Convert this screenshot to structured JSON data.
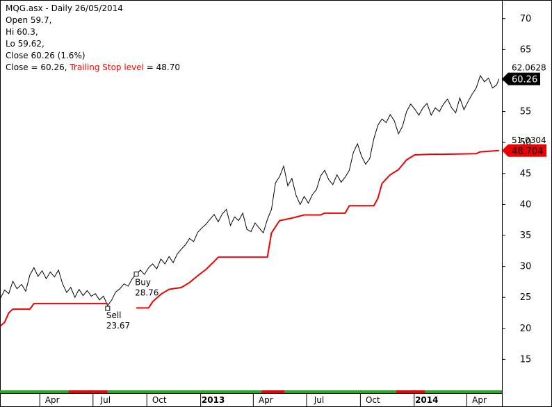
{
  "info": {
    "title": "MQG.asx - Daily 26/05/2014",
    "open": "Open 59.7,",
    "hi": "Hi 60.3,",
    "lo": "Lo 59.62,",
    "close": "Close 60.26 (1.6%)",
    "close_eq": "Close = 60.26,",
    "trailing_label": "Trailing Stop level",
    "trailing_val": "= 48.70"
  },
  "colors": {
    "price": "#000000",
    "stop": "#ee0000",
    "strip_green": "#22aa22",
    "strip_red": "#ee0000",
    "close_tag_bg": "#000000",
    "stop_tag_bg": "#ee0000"
  },
  "chart_data": {
    "type": "line",
    "title": "MQG.asx - Daily 26/05/2014",
    "ylim": [
      10,
      73
    ],
    "y_ticks": [
      15,
      20,
      25,
      30,
      35,
      40,
      45,
      50,
      55,
      60,
      65,
      70
    ],
    "x_range": [
      "2012-01-24",
      "2014-05-31"
    ],
    "x_ticks": [
      {
        "date": "2012-04-01",
        "label": "Apr",
        "bold": false
      },
      {
        "date": "2012-07-01",
        "label": "Jul",
        "bold": false
      },
      {
        "date": "2012-10-01",
        "label": "Oct",
        "bold": false
      },
      {
        "date": "2013-01-01",
        "label": "2013",
        "bold": true
      },
      {
        "date": "2013-04-01",
        "label": "Apr",
        "bold": false
      },
      {
        "date": "2013-07-01",
        "label": "Jul",
        "bold": false
      },
      {
        "date": "2013-10-01",
        "label": "Oct",
        "bold": false
      },
      {
        "date": "2014-01-01",
        "label": "2014",
        "bold": true
      },
      {
        "date": "2014-04-01",
        "label": "Apr",
        "bold": false
      }
    ],
    "series": [
      {
        "key": "close",
        "label": "Close",
        "points": [
          [
            "2012-01-25",
            24.9
          ],
          [
            "2012-02-01",
            26.2
          ],
          [
            "2012-02-08",
            25.6
          ],
          [
            "2012-02-15",
            27.6
          ],
          [
            "2012-02-22",
            26.4
          ],
          [
            "2012-03-01",
            27.1
          ],
          [
            "2012-03-08",
            26.0
          ],
          [
            "2012-03-15",
            28.6
          ],
          [
            "2012-03-22",
            29.8
          ],
          [
            "2012-03-29",
            28.4
          ],
          [
            "2012-04-05",
            29.3
          ],
          [
            "2012-04-12",
            28.0
          ],
          [
            "2012-04-19",
            29.1
          ],
          [
            "2012-04-26",
            28.3
          ],
          [
            "2012-05-03",
            29.4
          ],
          [
            "2012-05-10",
            27.2
          ],
          [
            "2012-05-17",
            25.8
          ],
          [
            "2012-05-24",
            26.6
          ],
          [
            "2012-05-31",
            25.0
          ],
          [
            "2012-06-07",
            26.3
          ],
          [
            "2012-06-14",
            25.3
          ],
          [
            "2012-06-21",
            26.1
          ],
          [
            "2012-06-28",
            25.2
          ],
          [
            "2012-07-05",
            25.6
          ],
          [
            "2012-07-12",
            24.6
          ],
          [
            "2012-07-19",
            25.2
          ],
          [
            "2012-07-26",
            23.67
          ],
          [
            "2012-08-02",
            24.6
          ],
          [
            "2012-08-09",
            25.9
          ],
          [
            "2012-08-16",
            26.4
          ],
          [
            "2012-08-23",
            27.2
          ],
          [
            "2012-08-30",
            26.8
          ],
          [
            "2012-09-06",
            28.0
          ],
          [
            "2012-09-13",
            28.76
          ],
          [
            "2012-09-20",
            29.4
          ],
          [
            "2012-09-27",
            28.7
          ],
          [
            "2012-10-04",
            29.8
          ],
          [
            "2012-10-11",
            30.4
          ],
          [
            "2012-10-18",
            29.6
          ],
          [
            "2012-10-25",
            31.2
          ],
          [
            "2012-11-01",
            30.4
          ],
          [
            "2012-11-08",
            31.6
          ],
          [
            "2012-11-15",
            30.6
          ],
          [
            "2012-11-22",
            32.0
          ],
          [
            "2012-11-29",
            32.8
          ],
          [
            "2012-12-06",
            33.5
          ],
          [
            "2012-12-13",
            34.5
          ],
          [
            "2012-12-20",
            34.0
          ],
          [
            "2012-12-27",
            35.5
          ],
          [
            "2013-01-03",
            36.2
          ],
          [
            "2013-01-10",
            36.8
          ],
          [
            "2013-01-17",
            37.6
          ],
          [
            "2013-01-24",
            38.4
          ],
          [
            "2013-01-31",
            37.2
          ],
          [
            "2013-02-07",
            38.5
          ],
          [
            "2013-02-14",
            39.2
          ],
          [
            "2013-02-21",
            36.6
          ],
          [
            "2013-02-28",
            38.0
          ],
          [
            "2013-03-07",
            37.4
          ],
          [
            "2013-03-14",
            38.6
          ],
          [
            "2013-03-21",
            36.0
          ],
          [
            "2013-03-28",
            35.6
          ],
          [
            "2013-04-04",
            37.0
          ],
          [
            "2013-04-11",
            36.2
          ],
          [
            "2013-04-18",
            35.4
          ],
          [
            "2013-04-25",
            37.6
          ],
          [
            "2013-05-02",
            39.2
          ],
          [
            "2013-05-09",
            43.5
          ],
          [
            "2013-05-16",
            44.5
          ],
          [
            "2013-05-23",
            46.2
          ],
          [
            "2013-05-30",
            43.0
          ],
          [
            "2013-06-06",
            44.2
          ],
          [
            "2013-06-13",
            41.5
          ],
          [
            "2013-06-20",
            40.0
          ],
          [
            "2013-06-27",
            41.3
          ],
          [
            "2013-07-04",
            40.2
          ],
          [
            "2013-07-11",
            41.6
          ],
          [
            "2013-07-18",
            42.4
          ],
          [
            "2013-07-25",
            44.6
          ],
          [
            "2013-08-01",
            45.5
          ],
          [
            "2013-08-08",
            44.0
          ],
          [
            "2013-08-15",
            43.2
          ],
          [
            "2013-08-22",
            44.8
          ],
          [
            "2013-08-29",
            43.6
          ],
          [
            "2013-09-05",
            44.4
          ],
          [
            "2013-09-12",
            45.5
          ],
          [
            "2013-09-19",
            48.4
          ],
          [
            "2013-09-26",
            49.8
          ],
          [
            "2013-10-03",
            47.8
          ],
          [
            "2013-10-10",
            46.5
          ],
          [
            "2013-10-17",
            47.4
          ],
          [
            "2013-10-24",
            50.6
          ],
          [
            "2013-10-31",
            52.8
          ],
          [
            "2013-11-07",
            53.8
          ],
          [
            "2013-11-14",
            53.2
          ],
          [
            "2013-11-21",
            54.5
          ],
          [
            "2013-11-28",
            53.5
          ],
          [
            "2013-12-05",
            51.4
          ],
          [
            "2013-12-12",
            52.6
          ],
          [
            "2013-12-19",
            55.0
          ],
          [
            "2013-12-26",
            56.2
          ],
          [
            "2014-01-02",
            55.4
          ],
          [
            "2014-01-09",
            54.4
          ],
          [
            "2014-01-16",
            55.6
          ],
          [
            "2014-01-23",
            56.3
          ],
          [
            "2014-01-30",
            54.4
          ],
          [
            "2014-02-06",
            55.6
          ],
          [
            "2014-02-13",
            55.0
          ],
          [
            "2014-02-20",
            56.2
          ],
          [
            "2014-02-27",
            57.0
          ],
          [
            "2014-03-06",
            55.6
          ],
          [
            "2014-03-13",
            54.8
          ],
          [
            "2014-03-20",
            57.2
          ],
          [
            "2014-03-27",
            55.3
          ],
          [
            "2014-04-03",
            56.6
          ],
          [
            "2014-04-10",
            57.8
          ],
          [
            "2014-04-17",
            58.8
          ],
          [
            "2014-04-24",
            60.8
          ],
          [
            "2014-05-01",
            59.8
          ],
          [
            "2014-05-08",
            60.4
          ],
          [
            "2014-05-15",
            58.8
          ],
          [
            "2014-05-22",
            59.3
          ],
          [
            "2014-05-26",
            60.26
          ]
        ]
      },
      {
        "key": "stop",
        "label": "Trailing Stop level",
        "segments": [
          [
            [
              "2012-01-25",
              20.4
            ],
            [
              "2012-02-01",
              21.0
            ],
            [
              "2012-02-08",
              22.5
            ],
            [
              "2012-02-15",
              23.1
            ],
            [
              "2012-03-15",
              23.1
            ],
            [
              "2012-03-22",
              24.0
            ],
            [
              "2012-07-26",
              24.0
            ]
          ],
          [
            [
              "2012-09-13",
              23.3
            ],
            [
              "2012-10-04",
              23.3
            ],
            [
              "2012-10-11",
              24.3
            ],
            [
              "2012-10-25",
              25.5
            ],
            [
              "2012-11-08",
              26.3
            ],
            [
              "2012-11-29",
              26.6
            ],
            [
              "2012-12-13",
              27.4
            ],
            [
              "2012-12-27",
              28.5
            ],
            [
              "2013-01-10",
              29.5
            ],
            [
              "2013-01-24",
              30.8
            ],
            [
              "2013-01-31",
              31.5
            ],
            [
              "2013-04-25",
              31.5
            ],
            [
              "2013-05-02",
              35.4
            ],
            [
              "2013-05-16",
              37.4
            ],
            [
              "2013-06-06",
              37.8
            ],
            [
              "2013-06-27",
              38.3
            ],
            [
              "2013-07-25",
              38.3
            ],
            [
              "2013-08-01",
              38.6
            ],
            [
              "2013-09-05",
              38.6
            ],
            [
              "2013-09-12",
              39.8
            ],
            [
              "2013-10-24",
              39.8
            ],
            [
              "2013-10-31",
              41.0
            ],
            [
              "2013-11-07",
              43.4
            ],
            [
              "2013-11-21",
              44.8
            ],
            [
              "2013-12-05",
              45.6
            ],
            [
              "2013-12-19",
              47.2
            ],
            [
              "2014-01-02",
              48.0
            ],
            [
              "2014-01-30",
              48.1
            ],
            [
              "2014-02-20",
              48.1
            ],
            [
              "2014-04-17",
              48.2
            ],
            [
              "2014-04-24",
              48.5
            ],
            [
              "2014-05-26",
              48.7
            ]
          ]
        ]
      }
    ],
    "annotations": [
      {
        "type": "sell",
        "date": "2012-07-26",
        "price": 23.67,
        "label": "Sell",
        "value": "23.67"
      },
      {
        "type": "buy",
        "date": "2012-09-13",
        "price": 28.76,
        "label": "Buy",
        "value": "28.76"
      }
    ],
    "right_labels": [
      {
        "key": "close_header",
        "text": "62.0628",
        "anchor": 60.26
      },
      {
        "key": "close_tag",
        "text": "60.26",
        "anchor": 60.26
      },
      {
        "key": "stop_header",
        "text": "51.0304",
        "anchor": 48.7
      },
      {
        "key": "stop_tag",
        "text": "48.704",
        "anchor": 48.7
      }
    ],
    "signal_strip": [
      {
        "from": "2012-01-24",
        "to": "2012-05-20",
        "state": "green"
      },
      {
        "from": "2012-05-20",
        "to": "2012-07-26",
        "state": "red"
      },
      {
        "from": "2012-07-26",
        "to": "2013-04-15",
        "state": "green"
      },
      {
        "from": "2013-04-15",
        "to": "2013-05-25",
        "state": "red"
      },
      {
        "from": "2013-05-25",
        "to": "2013-12-01",
        "state": "green"
      },
      {
        "from": "2013-12-01",
        "to": "2014-01-20",
        "state": "red"
      },
      {
        "from": "2014-01-20",
        "to": "2014-05-31",
        "state": "green"
      }
    ]
  }
}
